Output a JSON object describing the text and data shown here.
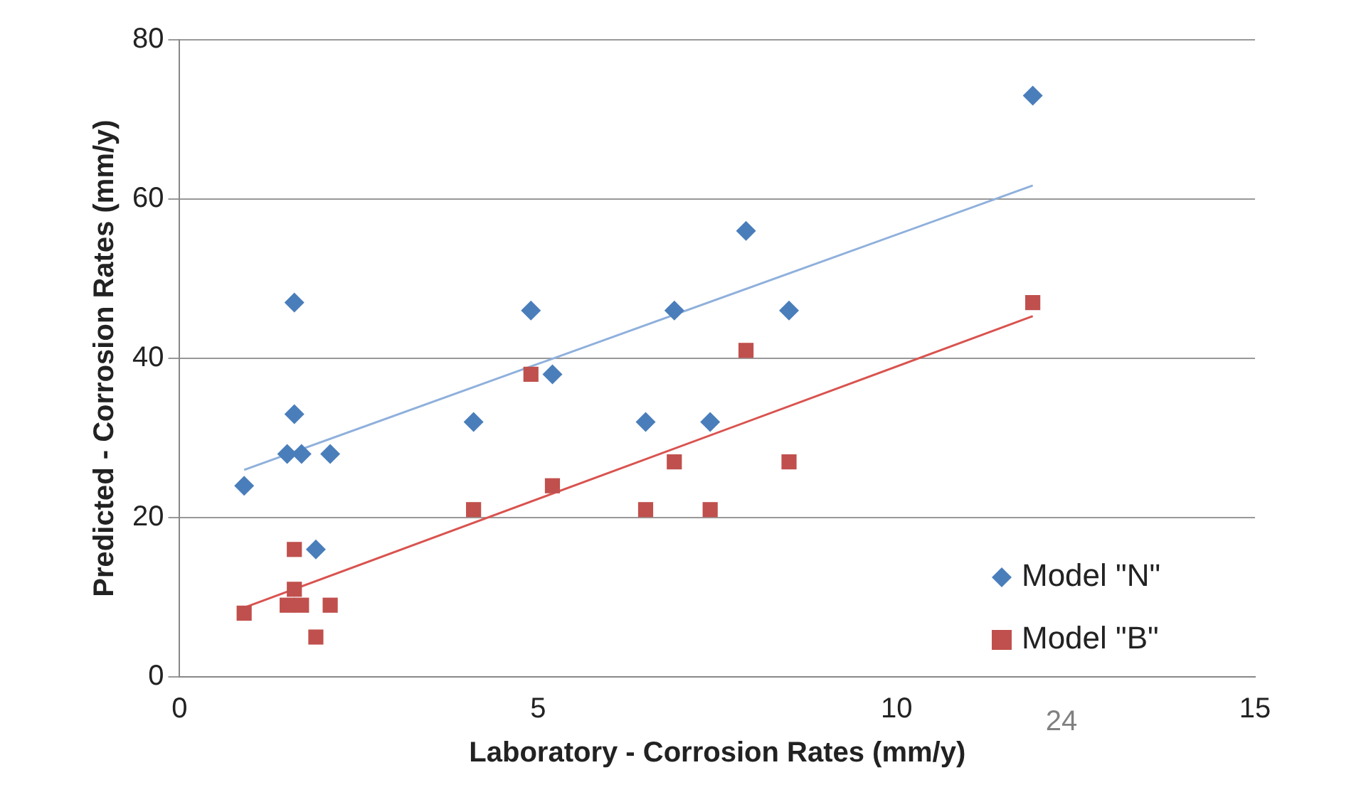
{
  "chart_data": {
    "type": "scatter",
    "xlabel": "Laboratory - Corrosion Rates (mm/y)",
    "ylabel": "Predicted - Corrosion Rates (mm/y)",
    "xlim": [
      0,
      15
    ],
    "xticks": [
      0,
      5,
      10,
      15
    ],
    "ylim": [
      0,
      80
    ],
    "yticks": [
      0,
      20,
      40,
      60,
      80
    ],
    "grid": "y",
    "legend": "bottom right",
    "annotations": [
      "24"
    ],
    "series": [
      {
        "name": "Model \"N\"",
        "color": "#4a7ebb",
        "marker": "diamond",
        "x": [
          0.9,
          1.6,
          1.6,
          1.5,
          1.7,
          2.1,
          1.9,
          4.1,
          4.9,
          5.2,
          6.5,
          6.9,
          7.4,
          7.9,
          8.5,
          11.9
        ],
        "values": [
          24,
          47,
          33,
          28,
          28,
          28,
          16,
          32,
          46,
          38,
          32,
          46,
          32,
          56,
          46,
          73
        ]
      },
      {
        "name": "Model \"B\"",
        "color": "#c0504d",
        "marker": "square",
        "x": [
          0.9,
          1.6,
          1.6,
          1.5,
          1.7,
          2.1,
          1.9,
          4.1,
          4.9,
          5.2,
          6.5,
          6.9,
          7.4,
          7.9,
          8.5,
          11.9
        ],
        "values": [
          8,
          16,
          11,
          9,
          9,
          9,
          5,
          21,
          38,
          24,
          21,
          27,
          21,
          41,
          27,
          47
        ]
      },
      {
        "type": "line",
        "color": "#8fb0dc",
        "marker": "none",
        "x": [
          0.9,
          11.9
        ],
        "values": [
          26,
          61.7
        ]
      },
      {
        "type": "line",
        "color": "#d9534f",
        "marker": "none",
        "x": [
          0.9,
          11.9
        ],
        "values": [
          8.7,
          45.3
        ]
      }
    ]
  }
}
